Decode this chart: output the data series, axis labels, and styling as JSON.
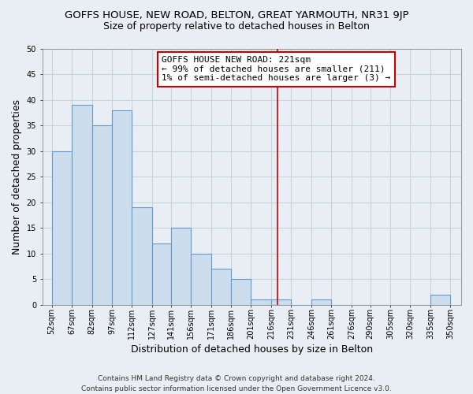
{
  "title": "GOFFS HOUSE, NEW ROAD, BELTON, GREAT YARMOUTH, NR31 9JP",
  "subtitle": "Size of property relative to detached houses in Belton",
  "xlabel": "Distribution of detached houses by size in Belton",
  "ylabel": "Number of detached properties",
  "bar_color": "#ccdded",
  "bar_edge_color": "#6699cc",
  "bar_left_edges": [
    52,
    67,
    82,
    97,
    112,
    127,
    141,
    156,
    171,
    186,
    201,
    216,
    231,
    246,
    261,
    276,
    290,
    305,
    320,
    335
  ],
  "bar_heights": [
    30,
    39,
    35,
    38,
    19,
    12,
    15,
    10,
    7,
    5,
    1,
    1,
    0,
    1,
    0,
    0,
    0,
    0,
    0,
    2
  ],
  "bar_widths": [
    15,
    15,
    15,
    15,
    15,
    14,
    15,
    15,
    15,
    15,
    15,
    15,
    15,
    15,
    15,
    14,
    15,
    15,
    15,
    15
  ],
  "tick_labels": [
    "52sqm",
    "67sqm",
    "82sqm",
    "97sqm",
    "112sqm",
    "127sqm",
    "141sqm",
    "156sqm",
    "171sqm",
    "186sqm",
    "201sqm",
    "216sqm",
    "231sqm",
    "246sqm",
    "261sqm",
    "276sqm",
    "290sqm",
    "305sqm",
    "320sqm",
    "335sqm",
    "350sqm"
  ],
  "tick_positions": [
    52,
    67,
    82,
    97,
    112,
    127,
    141,
    156,
    171,
    186,
    201,
    216,
    231,
    246,
    261,
    276,
    290,
    305,
    320,
    335,
    350
  ],
  "vline_x": 221,
  "vline_color": "#cc0000",
  "ylim": [
    0,
    50
  ],
  "yticks": [
    0,
    5,
    10,
    15,
    20,
    25,
    30,
    35,
    40,
    45,
    50
  ],
  "xlim_min": 45,
  "xlim_max": 358,
  "annotation_title": "GOFFS HOUSE NEW ROAD: 221sqm",
  "annotation_line1": "← 99% of detached houses are smaller (211)",
  "annotation_line2": "1% of semi-detached houses are larger (3) →",
  "footer_line1": "Contains HM Land Registry data © Crown copyright and database right 2024.",
  "footer_line2": "Contains public sector information licensed under the Open Government Licence v3.0.",
  "background_color": "#e8eef4",
  "grid_color": "#c8d4dc",
  "title_fontsize": 9.5,
  "subtitle_fontsize": 9,
  "axis_label_fontsize": 9,
  "tick_fontsize": 7,
  "footer_fontsize": 6.5,
  "annotation_fontsize": 8
}
